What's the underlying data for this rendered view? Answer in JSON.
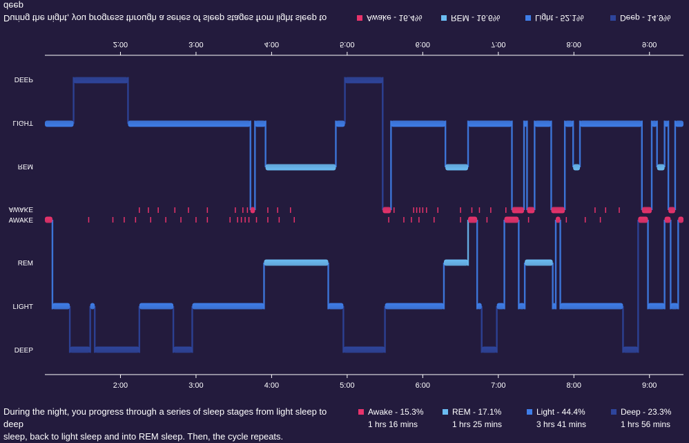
{
  "chart_data": [
    {
      "type": "area",
      "title": "",
      "variant": "mirrored",
      "levels": [
        "AWAKE",
        "REM",
        "LIGHT",
        "DEEP"
      ],
      "ylabels_shown": [
        "DEEP",
        "LIGHT",
        "REM",
        "AWAKE"
      ],
      "x_ticks": [
        "2:00",
        "3:00",
        "4:00",
        "5:00",
        "6:00",
        "7:00",
        "8:00",
        "9:00"
      ],
      "x_tick_hours": [
        2,
        3,
        4,
        5,
        6,
        7,
        8,
        9
      ],
      "x_range": [
        1.0,
        9.45
      ],
      "segments": [
        {
          "start": 1.0,
          "end": 1.38,
          "stage": "LIGHT"
        },
        {
          "start": 1.38,
          "end": 2.1,
          "stage": "DEEP"
        },
        {
          "start": 2.1,
          "end": 3.72,
          "stage": "LIGHT"
        },
        {
          "start": 3.72,
          "end": 3.78,
          "stage": "AWAKE"
        },
        {
          "start": 3.78,
          "end": 3.92,
          "stage": "LIGHT"
        },
        {
          "start": 3.92,
          "end": 4.85,
          "stage": "REM"
        },
        {
          "start": 4.85,
          "end": 4.97,
          "stage": "LIGHT"
        },
        {
          "start": 4.97,
          "end": 5.47,
          "stage": "DEEP"
        },
        {
          "start": 5.47,
          "end": 5.58,
          "stage": "AWAKE"
        },
        {
          "start": 5.58,
          "end": 6.3,
          "stage": "LIGHT"
        },
        {
          "start": 6.3,
          "end": 6.6,
          "stage": "REM"
        },
        {
          "start": 6.6,
          "end": 7.18,
          "stage": "LIGHT"
        },
        {
          "start": 7.18,
          "end": 7.34,
          "stage": "AWAKE"
        },
        {
          "start": 7.34,
          "end": 7.38,
          "stage": "LIGHT"
        },
        {
          "start": 7.38,
          "end": 7.48,
          "stage": "AWAKE"
        },
        {
          "start": 7.48,
          "end": 7.7,
          "stage": "LIGHT"
        },
        {
          "start": 7.7,
          "end": 7.88,
          "stage": "AWAKE"
        },
        {
          "start": 7.88,
          "end": 7.99,
          "stage": "LIGHT"
        },
        {
          "start": 7.99,
          "end": 8.08,
          "stage": "REM"
        },
        {
          "start": 8.08,
          "end": 8.9,
          "stage": "LIGHT"
        },
        {
          "start": 8.9,
          "end": 9.03,
          "stage": "AWAKE"
        },
        {
          "start": 9.03,
          "end": 9.1,
          "stage": "LIGHT"
        },
        {
          "start": 9.1,
          "end": 9.2,
          "stage": "REM"
        },
        {
          "start": 9.2,
          "end": 9.25,
          "stage": "LIGHT"
        },
        {
          "start": 9.25,
          "end": 9.34,
          "stage": "AWAKE"
        },
        {
          "start": 9.34,
          "end": 9.45,
          "stage": "LIGHT"
        }
      ],
      "awake_ticks": [
        2.25,
        2.37,
        2.5,
        2.72,
        2.9,
        3.15,
        3.52,
        3.62,
        3.68,
        3.95,
        4.08,
        4.25,
        5.62,
        5.88,
        5.92,
        5.96,
        6.0,
        6.05,
        6.2,
        6.5,
        6.65,
        6.75,
        6.9,
        7.1,
        8.28,
        8.42,
        8.6
      ],
      "legend": [
        {
          "label": "Awake - 16.4%",
          "color": "#e8336b"
        },
        {
          "label": "REM - 16.6%",
          "color": "#6bbcf2"
        },
        {
          "label": "Light - 52.1%",
          "color": "#3f7ee8"
        },
        {
          "label": "Deep - 14.9%",
          "color": "#2e459b"
        }
      ],
      "caption_line1": "During the night, you progress through a series of sleep stages from light sleep to deep"
    },
    {
      "type": "area",
      "title": "",
      "levels": [
        "AWAKE",
        "REM",
        "LIGHT",
        "DEEP"
      ],
      "ylabels_shown": [
        "AWAKE",
        "REM",
        "LIGHT",
        "DEEP"
      ],
      "x_ticks": [
        "2:00",
        "3:00",
        "4:00",
        "5:00",
        "6:00",
        "7:00",
        "8:00",
        "9:00"
      ],
      "x_tick_hours": [
        2,
        3,
        4,
        5,
        6,
        7,
        8,
        9
      ],
      "x_range": [
        1.0,
        9.45
      ],
      "segments": [
        {
          "start": 1.0,
          "end": 1.1,
          "stage": "AWAKE"
        },
        {
          "start": 1.1,
          "end": 1.33,
          "stage": "LIGHT"
        },
        {
          "start": 1.33,
          "end": 1.6,
          "stage": "DEEP"
        },
        {
          "start": 1.6,
          "end": 1.66,
          "stage": "LIGHT"
        },
        {
          "start": 1.66,
          "end": 2.25,
          "stage": "DEEP"
        },
        {
          "start": 2.25,
          "end": 2.7,
          "stage": "LIGHT"
        },
        {
          "start": 2.7,
          "end": 2.95,
          "stage": "DEEP"
        },
        {
          "start": 2.95,
          "end": 3.9,
          "stage": "LIGHT"
        },
        {
          "start": 3.9,
          "end": 4.75,
          "stage": "REM"
        },
        {
          "start": 4.75,
          "end": 4.95,
          "stage": "LIGHT"
        },
        {
          "start": 4.95,
          "end": 5.5,
          "stage": "DEEP"
        },
        {
          "start": 5.5,
          "end": 6.28,
          "stage": "LIGHT"
        },
        {
          "start": 6.28,
          "end": 6.6,
          "stage": "REM"
        },
        {
          "start": 6.6,
          "end": 6.72,
          "stage": "AWAKE"
        },
        {
          "start": 6.72,
          "end": 6.78,
          "stage": "LIGHT"
        },
        {
          "start": 6.78,
          "end": 6.98,
          "stage": "DEEP"
        },
        {
          "start": 6.98,
          "end": 7.08,
          "stage": "LIGHT"
        },
        {
          "start": 7.08,
          "end": 7.27,
          "stage": "AWAKE"
        },
        {
          "start": 7.27,
          "end": 7.35,
          "stage": "LIGHT"
        },
        {
          "start": 7.35,
          "end": 7.72,
          "stage": "REM"
        },
        {
          "start": 7.72,
          "end": 7.76,
          "stage": "LIGHT"
        },
        {
          "start": 7.76,
          "end": 7.82,
          "stage": "AWAKE"
        },
        {
          "start": 7.82,
          "end": 8.65,
          "stage": "LIGHT"
        },
        {
          "start": 8.65,
          "end": 8.85,
          "stage": "DEEP"
        },
        {
          "start": 8.85,
          "end": 8.98,
          "stage": "AWAKE"
        },
        {
          "start": 8.98,
          "end": 9.2,
          "stage": "LIGHT"
        },
        {
          "start": 9.2,
          "end": 9.28,
          "stage": "AWAKE"
        },
        {
          "start": 9.28,
          "end": 9.38,
          "stage": "LIGHT"
        },
        {
          "start": 9.38,
          "end": 9.45,
          "stage": "AWAKE"
        }
      ],
      "awake_ticks": [
        1.58,
        1.9,
        2.05,
        2.2,
        2.4,
        2.6,
        2.8,
        3.0,
        3.15,
        3.45,
        3.55,
        3.6,
        3.65,
        3.7,
        3.8,
        3.95,
        4.1,
        4.3,
        5.55,
        5.75,
        5.85,
        5.95,
        6.15,
        6.5,
        6.85,
        7.4,
        7.9,
        8.15,
        8.35
      ],
      "legend": [
        {
          "label": "Awake - 15.3%",
          "color": "#e8336b",
          "duration": "1 hrs 16 mins"
        },
        {
          "label": "REM - 17.1%",
          "color": "#6bbcf2",
          "duration": "1 hrs 25 mins"
        },
        {
          "label": "Light - 44.4%",
          "color": "#3f7ee8",
          "duration": "3 hrs 41 mins"
        },
        {
          "label": "Deep - 23.3%",
          "color": "#2e459b",
          "duration": "1 hrs 56 mins"
        }
      ],
      "caption_line1": "During the night, you progress through a series of sleep stages from light sleep to deep",
      "caption_line2": "sleep, back to light sleep and into REM sleep. Then, the cycle repeats."
    }
  ],
  "colors": {
    "background": "#231b3d",
    "axis": "#ffffff",
    "AWAKE": "#e8336b",
    "REM": "#6bbcf2",
    "LIGHT": "#3f7ee8",
    "DEEP": "#2e459b"
  }
}
